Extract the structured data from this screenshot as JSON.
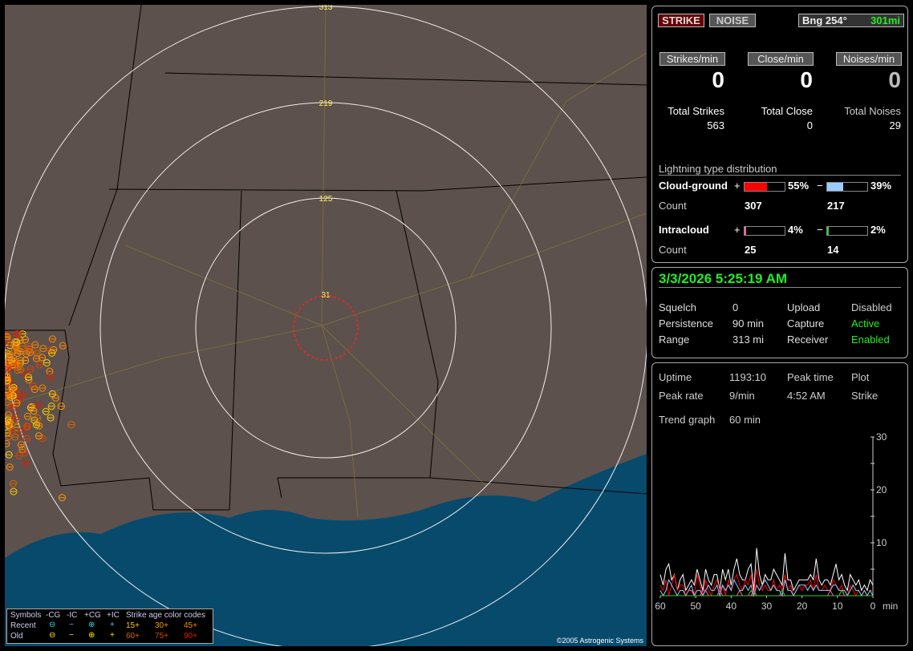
{
  "map": {
    "rings": [
      "313",
      "219",
      "125",
      "31"
    ],
    "copyright": "©2005 Astrogenic Systems",
    "legend": {
      "symbols_label": "Symbols",
      "headers": [
        "-CG",
        "-IC",
        "+CG",
        "+IC"
      ],
      "age_title": "Strike age color codes",
      "recent_label": "Recent",
      "old_label": "Old",
      "recent_ages": [
        "15+",
        "30+",
        "45+"
      ],
      "old_ages": [
        "60+",
        "75+",
        "90+"
      ],
      "recent_color": "#33ddee",
      "old_color": "#ffee00",
      "age_colors": [
        "#ffcc00",
        "#ff9900",
        "#ff8800",
        "#dd6600",
        "#dd4400",
        "#dd2200"
      ]
    }
  },
  "status": {
    "strike_button": "STRIKE",
    "noise_button": "NOISE",
    "bearing": "Bng 254°",
    "distance": "301mi",
    "strikes_min_label": "Strikes/min",
    "close_min_label": "Close/min",
    "noises_min_label": "Noises/min",
    "strikes_min": "0",
    "close_min": "0",
    "noises_min": "0",
    "total_strikes_label": "Total Strikes",
    "total_close_label": "Total Close",
    "total_noises_label": "Total Noises",
    "total_strikes": "563",
    "total_close": "0",
    "total_noises": "29",
    "dist_title": "Lightning type distribution",
    "cg_label": "Cloud-ground",
    "ic_label": "Intracloud",
    "count_label": "Count",
    "plus": "+",
    "minus": "−",
    "cg_pos_pct": "55%",
    "cg_pos_frac": 0.55,
    "cg_pos_count": "307",
    "cg_pos_color": "#ff0000",
    "cg_neg_pct": "39%",
    "cg_neg_frac": 0.39,
    "cg_neg_count": "217",
    "cg_neg_color": "#99ccff",
    "ic_pos_pct": "4%",
    "ic_pos_frac": 0.04,
    "ic_pos_count": "25",
    "ic_pos_color": "#ff66aa",
    "ic_neg_pct": "2%",
    "ic_neg_frac": 0.02,
    "ic_neg_count": "14",
    "ic_neg_color": "#33cc33"
  },
  "info": {
    "datetime": "3/3/2026 5:25:19 AM",
    "rows": [
      [
        "Squelch",
        "0",
        "Upload",
        "Disabled"
      ],
      [
        "Persistence",
        "90 min",
        "Capture",
        "Active"
      ],
      [
        "Range",
        "313 mi",
        "Receiver",
        "Enabled"
      ]
    ]
  },
  "stats": {
    "uptime_label": "Uptime",
    "uptime": "1193:10",
    "peak_time_label": "Peak time",
    "peak_time": "4:52 AM",
    "plot_label": "Plot",
    "plot_value": "Strike",
    "peak_rate_label": "Peak rate",
    "peak_rate": "9/min",
    "trend_label": "Trend graph",
    "trend_value": "60 min"
  },
  "chart_data": {
    "type": "line",
    "xlabel": "min",
    "x_ticks": [
      "60",
      "50",
      "40",
      "30",
      "20",
      "10",
      "0"
    ],
    "y_ticks": [
      "10",
      "20",
      "30"
    ],
    "xlim": [
      60,
      0
    ],
    "ylim": [
      0,
      30
    ],
    "series": [
      {
        "color": "#ffffff",
        "values": [
          4,
          2,
          5,
          6,
          3,
          4,
          1,
          3,
          4,
          1,
          2,
          3,
          2,
          5,
          3,
          1,
          5,
          3,
          2,
          4,
          4,
          1,
          5,
          3,
          5,
          2,
          5,
          7,
          4,
          3,
          3,
          5,
          6,
          1,
          9,
          4,
          2,
          4,
          3,
          3,
          5,
          4,
          3,
          2,
          8,
          3,
          3,
          1,
          2,
          3,
          3,
          3,
          3,
          4,
          3,
          7,
          3,
          2,
          3,
          3,
          2,
          4,
          6,
          3,
          4,
          2,
          1,
          4,
          3,
          2,
          3,
          1,
          2,
          1,
          3,
          2
        ]
      },
      {
        "color": "#ff0000",
        "values": [
          2,
          1,
          3,
          0,
          2,
          4,
          1,
          2,
          2,
          0,
          1,
          1,
          0,
          4,
          2,
          0,
          3,
          1,
          0,
          2,
          3,
          1,
          2,
          0,
          3,
          1,
          3,
          4,
          2,
          1,
          3,
          2,
          4,
          0,
          5,
          2,
          1,
          2,
          1,
          1,
          3,
          1,
          2,
          1,
          4,
          1,
          2,
          0,
          1,
          2,
          1,
          2,
          2,
          3,
          1,
          4,
          1,
          1,
          2,
          1,
          1,
          3,
          2,
          1,
          2,
          0,
          0,
          2,
          1,
          0,
          1,
          0,
          1,
          0,
          1,
          1
        ]
      },
      {
        "color": "#99ccff",
        "values": [
          1,
          0,
          1,
          3,
          2,
          1,
          0,
          1,
          1,
          0,
          1,
          2,
          0,
          1,
          1,
          0,
          1,
          2,
          1,
          1,
          2,
          0,
          2,
          1,
          2,
          1,
          3,
          2,
          1,
          1,
          2,
          1,
          2,
          0,
          2,
          1,
          2,
          3,
          2,
          1,
          2,
          1,
          1,
          0,
          3,
          1,
          1,
          0,
          1,
          2,
          2,
          2,
          1,
          2,
          1,
          2,
          1,
          1,
          1,
          1,
          1,
          2,
          2,
          1,
          1,
          1,
          0,
          1,
          2,
          1,
          1,
          0,
          1,
          0,
          1,
          0
        ]
      },
      {
        "color": "#ff66aa",
        "values": [
          0,
          0,
          0,
          0,
          0,
          0,
          0,
          0,
          0,
          0,
          1,
          1,
          0,
          0,
          0,
          1,
          1,
          0,
          0,
          0,
          0,
          1,
          0,
          0,
          0,
          0,
          0,
          0,
          1,
          0,
          0,
          0,
          0,
          1,
          0,
          0,
          0,
          0,
          0,
          0,
          0,
          0,
          0,
          0,
          0,
          0,
          0,
          0,
          0,
          0,
          0,
          0,
          0,
          0,
          0,
          0,
          0,
          0,
          0,
          0,
          1,
          0,
          0,
          0,
          0,
          0,
          0,
          0,
          0,
          0,
          0,
          0,
          0,
          0,
          0,
          0
        ]
      },
      {
        "color": "#33cc33",
        "values": [
          0,
          0,
          0,
          0,
          0,
          0,
          0,
          0,
          0,
          0,
          0,
          0,
          0,
          0,
          0,
          0,
          0,
          0,
          0,
          0,
          0,
          0,
          0,
          0,
          0,
          0,
          0,
          0,
          0,
          0,
          0,
          0,
          1,
          0,
          0,
          0,
          0,
          0,
          0,
          0,
          0,
          0,
          0,
          1,
          0,
          0,
          0,
          0,
          0,
          0,
          0,
          0,
          0,
          0,
          0,
          0,
          0,
          0,
          0,
          0,
          0,
          0,
          0,
          0,
          1,
          0,
          0,
          0,
          0,
          0,
          0,
          0,
          0,
          0,
          0,
          0
        ]
      }
    ]
  }
}
